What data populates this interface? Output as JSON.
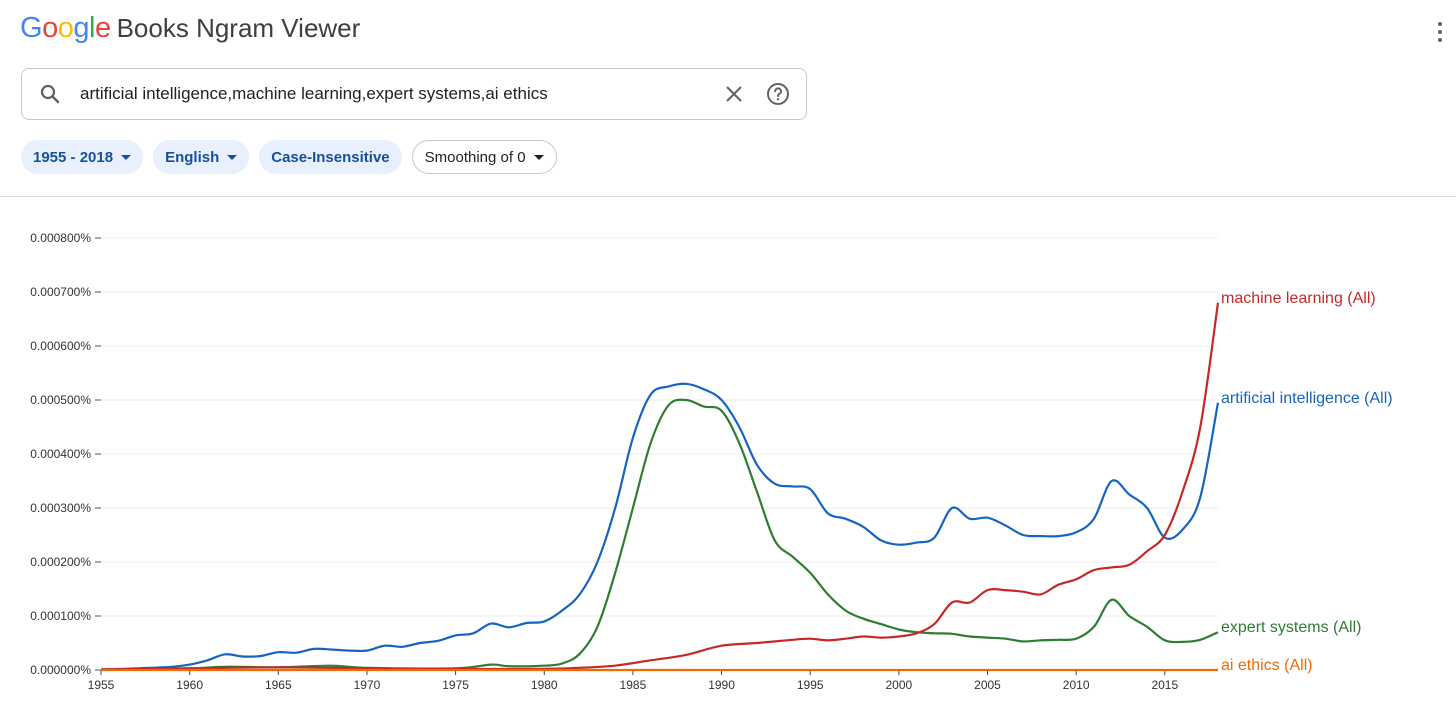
{
  "header": {
    "logo_text": "Google",
    "logo_colors": [
      "#4285F4",
      "#EA4335",
      "#FBBC05",
      "#4285F4",
      "#34A853",
      "#EA4335"
    ],
    "title": "Books Ngram Viewer",
    "menu_icon": "more-vert-icon"
  },
  "search": {
    "query": "artificial intelligence,machine learning,expert systems,ai ethics",
    "search_icon": "search-icon",
    "clear_icon": "close-icon",
    "help_icon": "help-icon"
  },
  "filters": {
    "year_range": "1955 - 2018",
    "language": "English",
    "case": "Case-Insensitive",
    "smoothing": "Smoothing of 0"
  },
  "chart_data": {
    "type": "line",
    "x_range": [
      1955,
      2018
    ],
    "ylim": [
      0,
      0.0008
    ],
    "y_ticks": [
      "0.000000%",
      "0.000100%",
      "0.000200%",
      "0.000300%",
      "0.000400%",
      "0.000500%",
      "0.000600%",
      "0.000700%",
      "0.000800%"
    ],
    "y_tick_values": [
      0,
      0.0001,
      0.0002,
      0.0003,
      0.0004,
      0.0005,
      0.0006,
      0.0007,
      0.0008
    ],
    "x_ticks": [
      "1955",
      "1960",
      "1965",
      "1970",
      "1975",
      "1980",
      "1985",
      "1990",
      "1995",
      "2000",
      "2005",
      "2010",
      "2015"
    ],
    "x_tick_values": [
      1955,
      1960,
      1965,
      1970,
      1975,
      1980,
      1985,
      1990,
      1995,
      2000,
      2005,
      2010,
      2015
    ],
    "grid": true,
    "legend": "inline-right",
    "series": [
      {
        "name": "artificial intelligence (All)",
        "color": "#1565c0",
        "points": [
          [
            1955,
            1e-06
          ],
          [
            1957,
            3e-06
          ],
          [
            1959,
            6e-06
          ],
          [
            1960,
            1e-05
          ],
          [
            1961,
            1.8e-05
          ],
          [
            1962,
            2.9e-05
          ],
          [
            1963,
            2.5e-05
          ],
          [
            1964,
            2.6e-05
          ],
          [
            1965,
            3.3e-05
          ],
          [
            1966,
            3.2e-05
          ],
          [
            1967,
            3.9e-05
          ],
          [
            1968,
            3.8e-05
          ],
          [
            1969,
            3.6e-05
          ],
          [
            1970,
            3.6e-05
          ],
          [
            1971,
            4.5e-05
          ],
          [
            1972,
            4.3e-05
          ],
          [
            1973,
            5e-05
          ],
          [
            1974,
            5.4e-05
          ],
          [
            1975,
            6.4e-05
          ],
          [
            1976,
            6.8e-05
          ],
          [
            1977,
            8.6e-05
          ],
          [
            1978,
            7.9e-05
          ],
          [
            1979,
            8.7e-05
          ],
          [
            1980,
            9e-05
          ],
          [
            1981,
            0.00011
          ],
          [
            1982,
            0.00014
          ],
          [
            1983,
            0.0002
          ],
          [
            1984,
            0.0003
          ],
          [
            1985,
            0.00043
          ],
          [
            1986,
            0.00051
          ],
          [
            1987,
            0.000525
          ],
          [
            1988,
            0.00053
          ],
          [
            1989,
            0.00052
          ],
          [
            1990,
            0.0005
          ],
          [
            1991,
            0.00045
          ],
          [
            1992,
            0.00038
          ],
          [
            1993,
            0.000345
          ],
          [
            1994,
            0.00034
          ],
          [
            1995,
            0.000335
          ],
          [
            1996,
            0.00029
          ],
          [
            1997,
            0.00028
          ],
          [
            1998,
            0.000265
          ],
          [
            1999,
            0.00024
          ],
          [
            2000,
            0.000232
          ],
          [
            2001,
            0.000236
          ],
          [
            2002,
            0.000245
          ],
          [
            2003,
            0.0003
          ],
          [
            2004,
            0.00028
          ],
          [
            2005,
            0.000282
          ],
          [
            2006,
            0.000268
          ],
          [
            2007,
            0.00025
          ],
          [
            2008,
            0.000248
          ],
          [
            2009,
            0.000248
          ],
          [
            2010,
            0.000255
          ],
          [
            2011,
            0.00028
          ],
          [
            2012,
            0.00035
          ],
          [
            2013,
            0.000325
          ],
          [
            2014,
            0.0003
          ],
          [
            2015,
            0.000245
          ],
          [
            2016,
            0.00026
          ],
          [
            2017,
            0.00032
          ],
          [
            2018,
            0.000495
          ]
        ]
      },
      {
        "name": "machine learning (All)",
        "color": "#c62828",
        "points": [
          [
            1955,
            1e-06
          ],
          [
            1960,
            3e-06
          ],
          [
            1965,
            5e-06
          ],
          [
            1970,
            3e-06
          ],
          [
            1975,
            2e-06
          ],
          [
            1980,
            2e-06
          ],
          [
            1982,
            4e-06
          ],
          [
            1984,
            8e-06
          ],
          [
            1986,
            1.8e-05
          ],
          [
            1988,
            2.8e-05
          ],
          [
            1990,
            4.5e-05
          ],
          [
            1992,
            5e-05
          ],
          [
            1994,
            5.6e-05
          ],
          [
            1995,
            5.8e-05
          ],
          [
            1996,
            5.5e-05
          ],
          [
            1997,
            5.8e-05
          ],
          [
            1998,
            6.2e-05
          ],
          [
            1999,
            6e-05
          ],
          [
            2000,
            6.2e-05
          ],
          [
            2001,
            6.8e-05
          ],
          [
            2002,
            8.5e-05
          ],
          [
            2003,
            0.000125
          ],
          [
            2004,
            0.000125
          ],
          [
            2005,
            0.000148
          ],
          [
            2006,
            0.000148
          ],
          [
            2007,
            0.000145
          ],
          [
            2008,
            0.00014
          ],
          [
            2009,
            0.000158
          ],
          [
            2010,
            0.000168
          ],
          [
            2011,
            0.000185
          ],
          [
            2012,
            0.00019
          ],
          [
            2013,
            0.000195
          ],
          [
            2014,
            0.00022
          ],
          [
            2015,
            0.00025
          ],
          [
            2016,
            0.00033
          ],
          [
            2017,
            0.00045
          ],
          [
            2018,
            0.00068
          ]
        ]
      },
      {
        "name": "expert systems (All)",
        "color": "#2e7d32",
        "points": [
          [
            1955,
            1e-06
          ],
          [
            1960,
            3e-06
          ],
          [
            1962,
            6e-06
          ],
          [
            1965,
            5e-06
          ],
          [
            1968,
            8e-06
          ],
          [
            1970,
            4e-06
          ],
          [
            1975,
            3e-06
          ],
          [
            1977,
            1e-05
          ],
          [
            1978,
            7e-06
          ],
          [
            1980,
            8e-06
          ],
          [
            1981,
            1.2e-05
          ],
          [
            1982,
            3e-05
          ],
          [
            1983,
            8e-05
          ],
          [
            1984,
            0.00018
          ],
          [
            1985,
            0.0003
          ],
          [
            1986,
            0.00042
          ],
          [
            1987,
            0.00049
          ],
          [
            1988,
            0.0005
          ],
          [
            1989,
            0.000488
          ],
          [
            1990,
            0.00048
          ],
          [
            1991,
            0.00042
          ],
          [
            1992,
            0.00033
          ],
          [
            1993,
            0.00024
          ],
          [
            1994,
            0.00021
          ],
          [
            1995,
            0.00018
          ],
          [
            1996,
            0.00014
          ],
          [
            1997,
            0.00011
          ],
          [
            1998,
            9.5e-05
          ],
          [
            1999,
            8.5e-05
          ],
          [
            2000,
            7.5e-05
          ],
          [
            2001,
            7e-05
          ],
          [
            2002,
            6.8e-05
          ],
          [
            2003,
            6.7e-05
          ],
          [
            2004,
            6.2e-05
          ],
          [
            2005,
            6e-05
          ],
          [
            2006,
            5.8e-05
          ],
          [
            2007,
            5.3e-05
          ],
          [
            2008,
            5.5e-05
          ],
          [
            2009,
            5.6e-05
          ],
          [
            2010,
            5.8e-05
          ],
          [
            2011,
            8e-05
          ],
          [
            2012,
            0.00013
          ],
          [
            2013,
            0.0001
          ],
          [
            2014,
            8e-05
          ],
          [
            2015,
            5.5e-05
          ],
          [
            2016,
            5.2e-05
          ],
          [
            2017,
            5.6e-05
          ],
          [
            2018,
            7e-05
          ]
        ]
      },
      {
        "name": "ai ethics (All)",
        "color": "#ef6c00",
        "points": [
          [
            1955,
            0.0
          ],
          [
            1980,
            0.0
          ],
          [
            2000,
            0.0
          ],
          [
            2018,
            0.0
          ]
        ]
      }
    ]
  }
}
